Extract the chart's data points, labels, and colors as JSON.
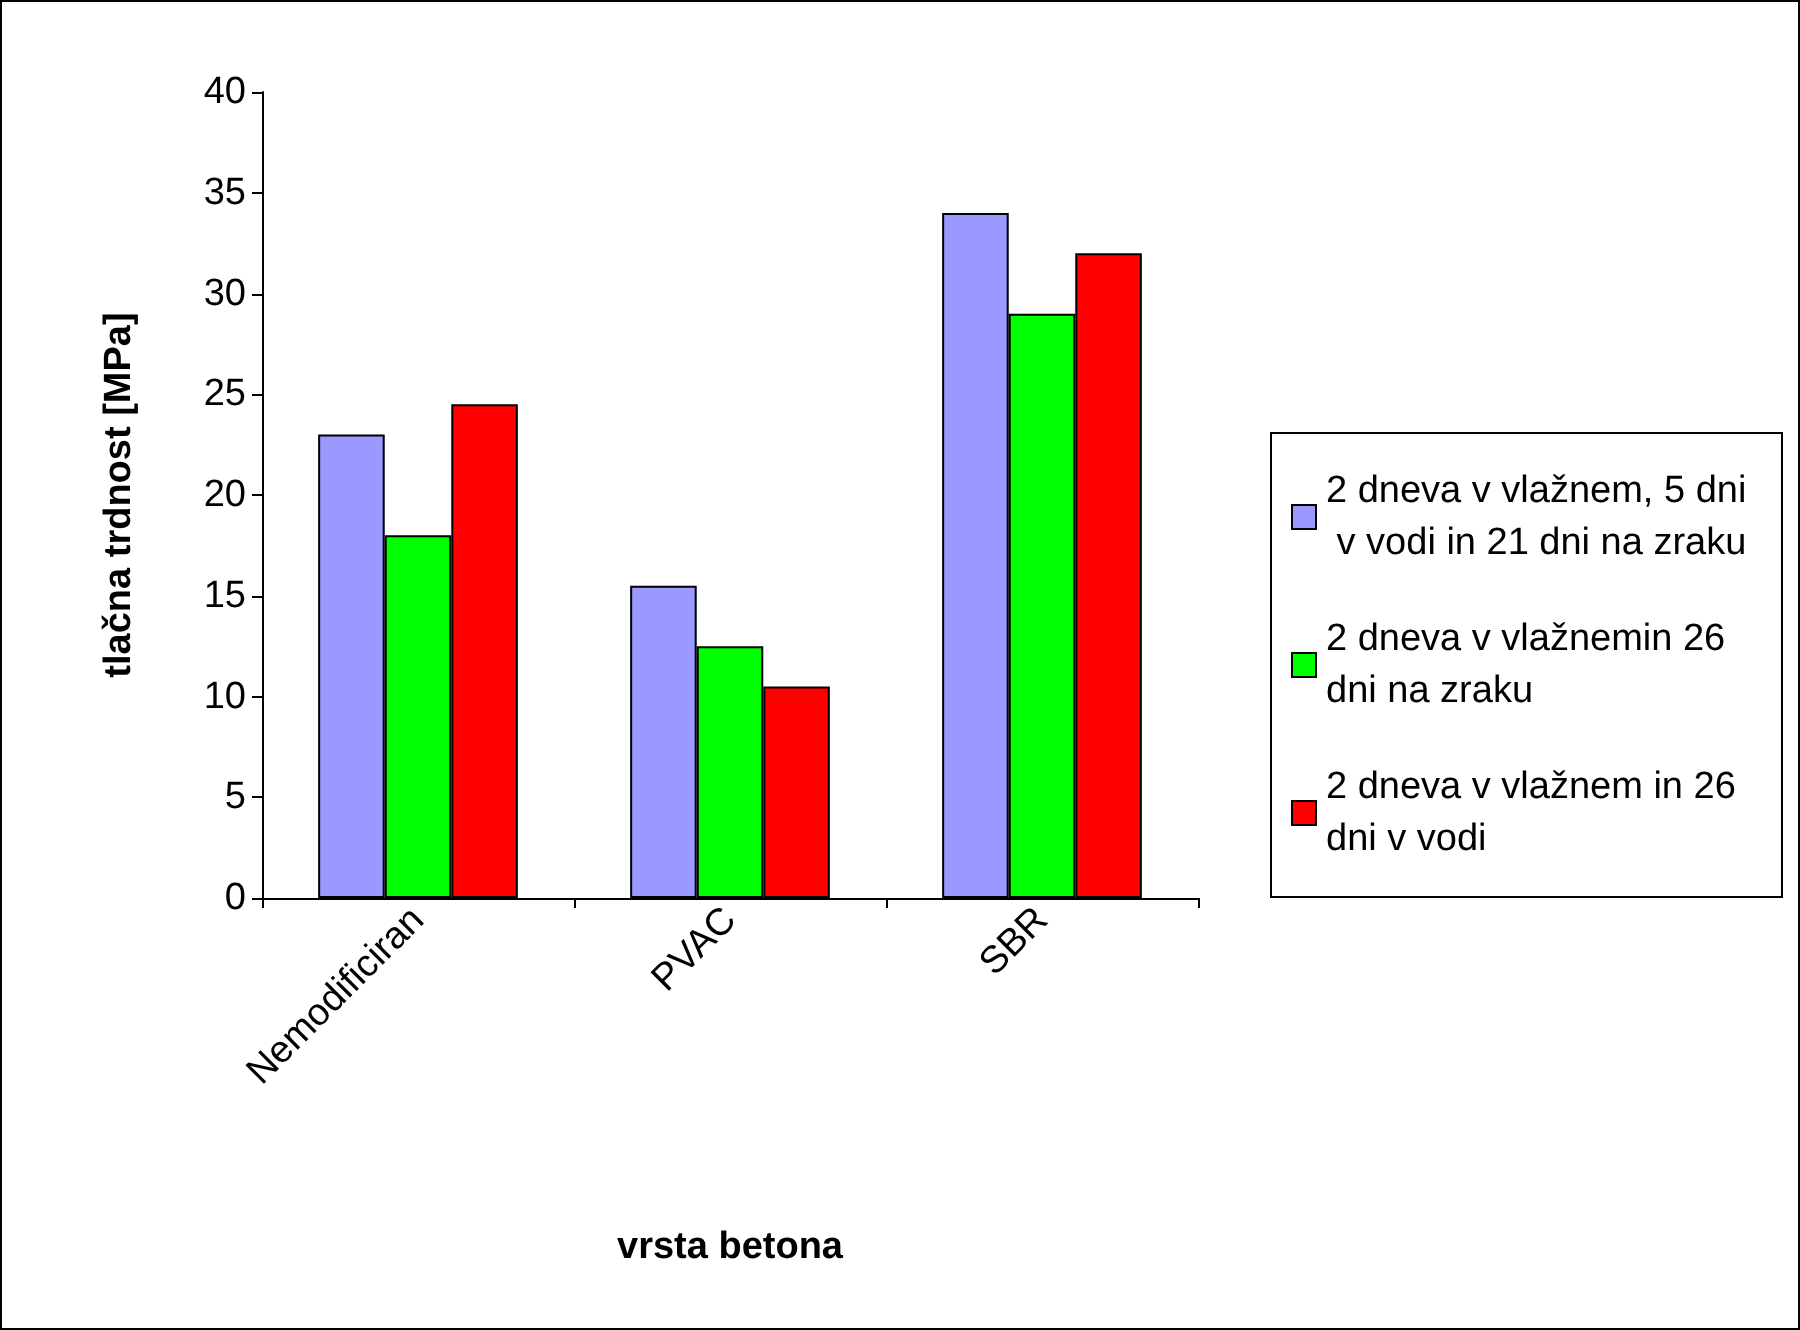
{
  "chart_data": {
    "type": "bar",
    "xlabel": "vrsta betona",
    "ylabel": "tlačna trdnost [MPa]",
    "categories": [
      "Nemodificiran",
      "PVAC",
      "SBR"
    ],
    "series": [
      {
        "name": "2 dneva v vlažnem, 5 dni v vodi in 21 dni na zraku",
        "color": "#9999ff",
        "values": [
          23,
          15.5,
          34
        ]
      },
      {
        "name": "2 dneva v vlažnemin 26 dni na zraku",
        "color": "#00ff00",
        "values": [
          18,
          12.5,
          29
        ]
      },
      {
        "name": "2 dneva v vlažnem in 26 dni v vodi",
        "color": "#ff0000",
        "values": [
          24.5,
          10.5,
          32
        ]
      }
    ],
    "ylim": [
      0,
      40
    ],
    "yticks": [
      0,
      5,
      10,
      15,
      20,
      25,
      30,
      35,
      40
    ],
    "grid": false,
    "legend": "right"
  }
}
